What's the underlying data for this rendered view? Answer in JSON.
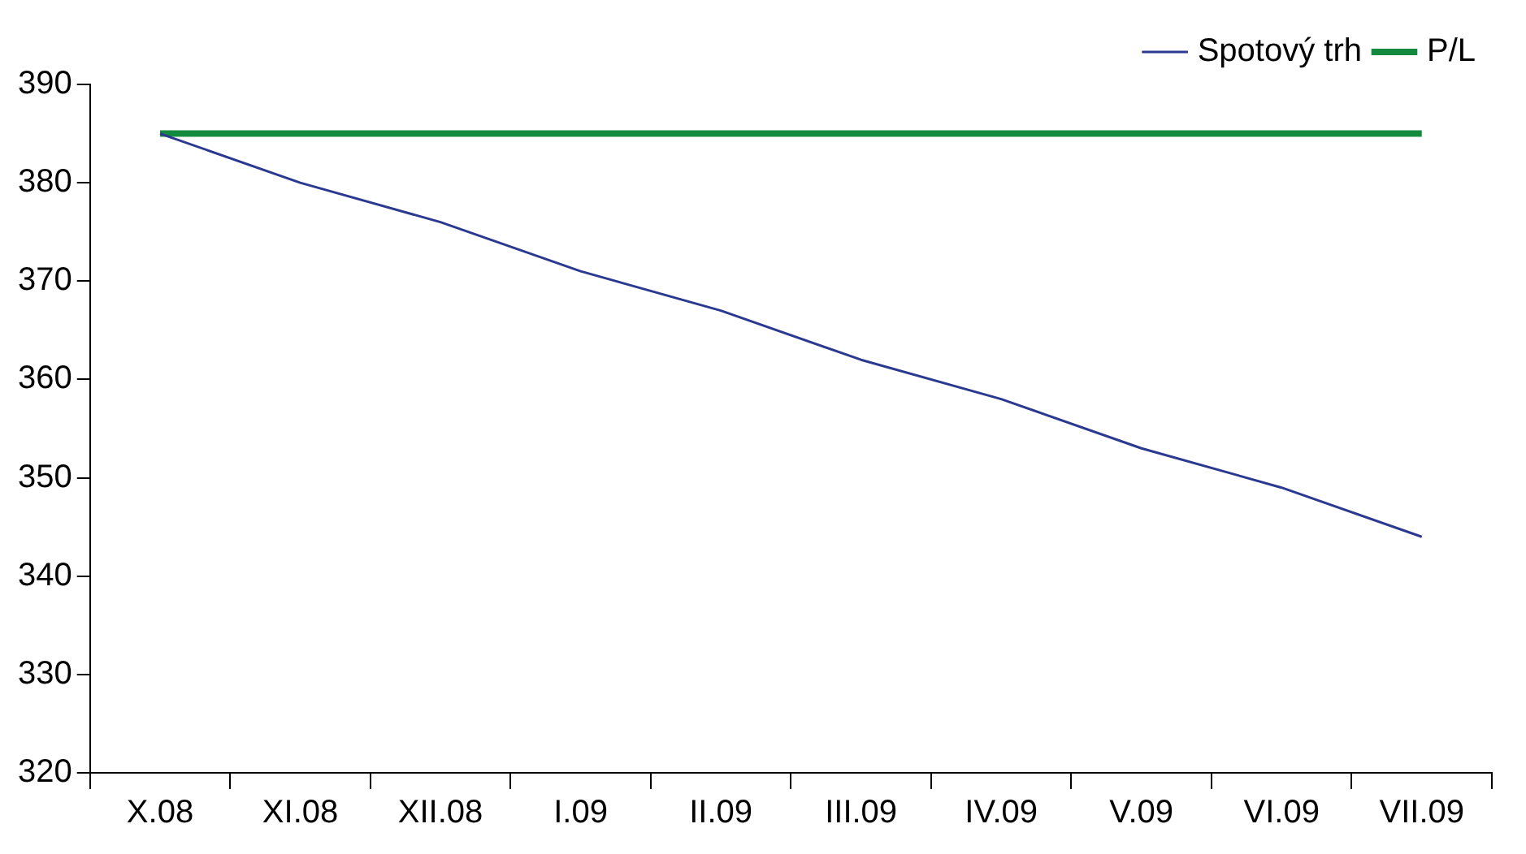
{
  "chart_data": {
    "type": "line",
    "categories": [
      "X.08",
      "XI.08",
      "XII.08",
      "I.09",
      "II.09",
      "III.09",
      "IV.09",
      "V.09",
      "VI.09",
      "VII.09"
    ],
    "series": [
      {
        "name": "Spotový trh",
        "color": "#2b3990",
        "values": [
          385,
          380,
          376,
          371,
          367,
          362,
          358,
          353,
          349,
          344
        ]
      },
      {
        "name": "P/L",
        "color": "#138a3e",
        "values": [
          385,
          385,
          385,
          385,
          385,
          385,
          385,
          385,
          385,
          385
        ]
      }
    ],
    "ylim": [
      320,
      390
    ],
    "yticks": [
      320,
      330,
      340,
      350,
      360,
      370,
      380,
      390
    ],
    "grid": false,
    "legend": "top right",
    "marker": "none",
    "line_style": "solid"
  }
}
